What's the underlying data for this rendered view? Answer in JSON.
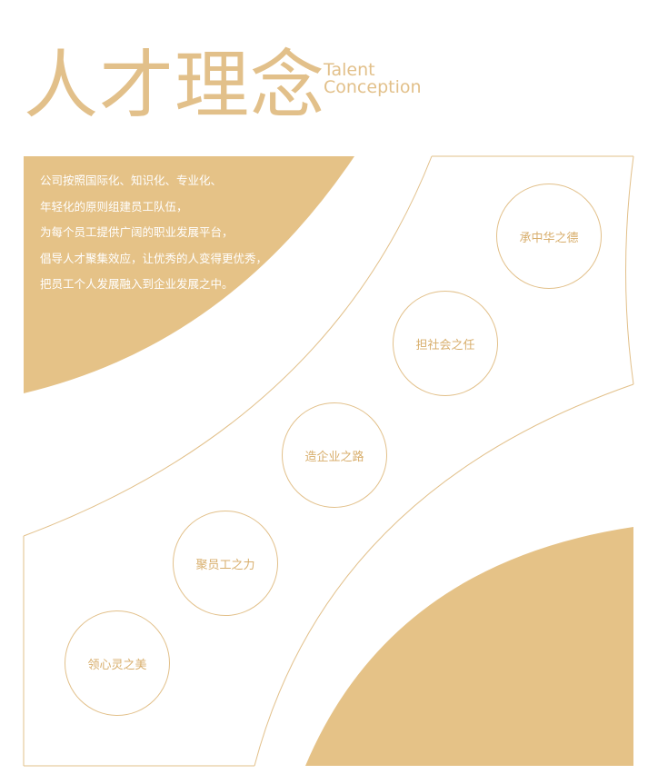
{
  "title": {
    "cn": "人才理念",
    "en_line1": "Talent",
    "en_line2": "Conception"
  },
  "intro_lines": [
    "公司按照国际化、知识化、专业化、",
    "年轻化的原则组建员工队伍，",
    "为每个员工提供广阔的职业发展平台，",
    "倡导人才聚集效应，让优秀的人变得更优秀，",
    "把员工个人发展融入到企业发展之中。"
  ],
  "values": [
    "承中华之德",
    "担社会之任",
    "造企业之路",
    "聚员工之力",
    "领心灵之美"
  ],
  "colors": {
    "accent": "#e2c08a",
    "fill": "#e5c287",
    "text_on_fill": "#ffffff"
  }
}
